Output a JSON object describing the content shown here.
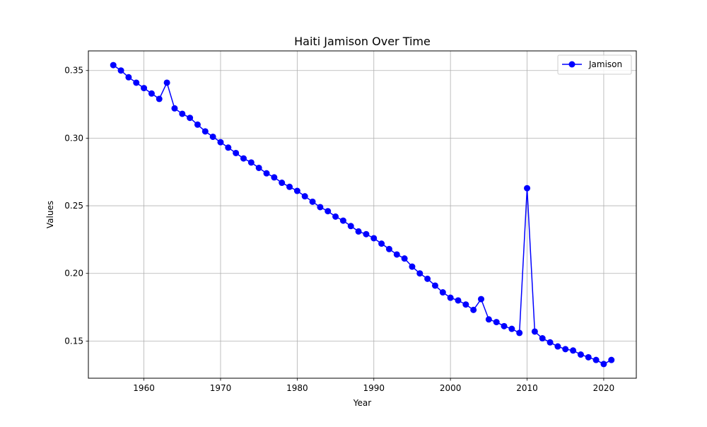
{
  "chart_data": {
    "type": "line",
    "title": "Haiti Jamison Over Time",
    "xlabel": "Year",
    "ylabel": "Values",
    "xlim": [
      1952.75,
      2024.25
    ],
    "ylim": [
      0.1225,
      0.3645
    ],
    "xticks": [
      1960,
      1970,
      1980,
      1990,
      2000,
      2010,
      2020
    ],
    "xtick_labels": [
      "1960",
      "1970",
      "1980",
      "1990",
      "2000",
      "2010",
      "2020"
    ],
    "yticks": [
      0.15,
      0.2,
      0.25,
      0.3,
      0.35
    ],
    "ytick_labels": [
      "0.15",
      "0.20",
      "0.25",
      "0.30",
      "0.35"
    ],
    "grid": true,
    "legend_position": "top-right",
    "series": [
      {
        "name": "Jamison",
        "color": "#0000ff",
        "marker": "circle",
        "x": [
          1956,
          1957,
          1958,
          1959,
          1960,
          1961,
          1962,
          1963,
          1964,
          1965,
          1966,
          1967,
          1968,
          1969,
          1970,
          1971,
          1972,
          1973,
          1974,
          1975,
          1976,
          1977,
          1978,
          1979,
          1980,
          1981,
          1982,
          1983,
          1984,
          1985,
          1986,
          1987,
          1988,
          1989,
          1990,
          1991,
          1992,
          1993,
          1994,
          1995,
          1996,
          1997,
          1998,
          1999,
          2000,
          2001,
          2002,
          2003,
          2004,
          2005,
          2006,
          2007,
          2008,
          2009,
          2010,
          2011,
          2012,
          2013,
          2014,
          2015,
          2016,
          2017,
          2018,
          2019,
          2020,
          2021
        ],
        "y": [
          0.354,
          0.35,
          0.345,
          0.341,
          0.337,
          0.333,
          0.329,
          0.341,
          0.322,
          0.318,
          0.315,
          0.31,
          0.305,
          0.301,
          0.297,
          0.293,
          0.289,
          0.285,
          0.282,
          0.278,
          0.274,
          0.271,
          0.267,
          0.264,
          0.261,
          0.257,
          0.253,
          0.249,
          0.246,
          0.242,
          0.239,
          0.235,
          0.231,
          0.229,
          0.226,
          0.222,
          0.218,
          0.214,
          0.211,
          0.205,
          0.2,
          0.196,
          0.191,
          0.186,
          0.182,
          0.18,
          0.177,
          0.173,
          0.181,
          0.166,
          0.164,
          0.161,
          0.159,
          0.156,
          0.263,
          0.157,
          0.152,
          0.149,
          0.146,
          0.144,
          0.143,
          0.14,
          0.138,
          0.136,
          0.133,
          0.136
        ]
      }
    ]
  }
}
